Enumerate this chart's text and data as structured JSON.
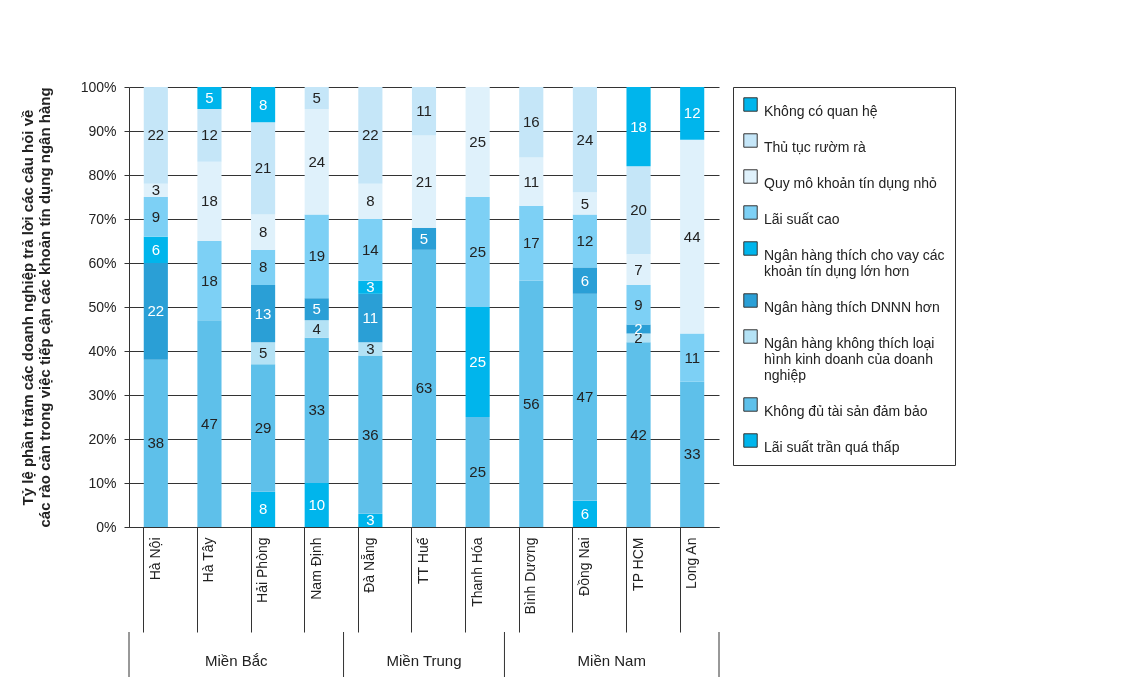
{
  "chart_data": {
    "type": "bar",
    "stacked": true,
    "ylabel": "Tỷ lệ phần trăm các doanh nghiệp trả lời các câu hỏi về các rào cản trong việc tiếp cận các khoản tín dụng ngân hàng",
    "categories": [
      "Hà Nội",
      "Hà Tây",
      "Hải Phòng",
      "Nam Định",
      "Đà Nẵng",
      "TT Huế",
      "Thanh Hóa",
      "Bình Dương",
      "Đồng Nai",
      "TP HCM",
      "Long An"
    ],
    "series": [
      {
        "name": "Lãi suất trần quá thấp",
        "color": "#00b5ec",
        "values": [
          null,
          null,
          8,
          10,
          3,
          null,
          null,
          null,
          6,
          null,
          null
        ]
      },
      {
        "name": "Không đủ tài sản đảm bảo",
        "color": "#5ec0ea",
        "values": [
          38,
          47,
          29,
          33,
          36,
          63,
          25,
          56,
          47,
          42,
          33
        ]
      },
      {
        "name": "Ngân hàng không thích loại hình kinh doanh của doanh nghiệp",
        "color": "#b4e2f5",
        "values": [
          null,
          null,
          5,
          4,
          3,
          null,
          null,
          null,
          null,
          2,
          null
        ]
      },
      {
        "name": "Ngân hàng thích DNNN hơn",
        "color": "#2a9fd6",
        "values": [
          22,
          null,
          13,
          5,
          11,
          5,
          null,
          null,
          6,
          2,
          null
        ]
      },
      {
        "name": "Ngân hàng thích cho vay các khoản tín dụng lớn hơn",
        "color": "#00b5ec",
        "values": [
          6,
          null,
          null,
          null,
          3,
          null,
          25,
          null,
          null,
          null,
          null
        ]
      },
      {
        "name": "Lãi suất cao",
        "color": "#7dd0f5",
        "values": [
          9,
          18,
          8,
          19,
          14,
          null,
          25,
          17,
          12,
          9,
          11
        ]
      },
      {
        "name": "Quy mô khoản tín dụng nhỏ",
        "color": "#dff1fb",
        "values": [
          3,
          18,
          8,
          24,
          8,
          21,
          25,
          11,
          5,
          7,
          44
        ]
      },
      {
        "name": "Thủ tục rườm rà",
        "color": "#c5e6f8",
        "values": [
          22,
          12,
          21,
          5,
          22,
          11,
          null,
          16,
          24,
          20,
          null
        ]
      },
      {
        "name": "Không có quan hệ",
        "color": "#00b5ec",
        "values": [
          null,
          5,
          8,
          null,
          null,
          null,
          null,
          null,
          null,
          18,
          12
        ]
      }
    ],
    "ylim": [
      0,
      100
    ],
    "yticks": [
      {
        "value": 0,
        "label": "0%"
      },
      {
        "value": 10,
        "label": "10%"
      },
      {
        "value": 20,
        "label": "20%"
      },
      {
        "value": 30,
        "label": "30%"
      },
      {
        "value": 40,
        "label": "40%"
      },
      {
        "value": 50,
        "label": "50%"
      },
      {
        "value": 60,
        "label": "60%"
      },
      {
        "value": 70,
        "label": "70%"
      },
      {
        "value": 80,
        "label": "80%"
      },
      {
        "value": 90,
        "label": "90%"
      },
      {
        "value": 100,
        "label": "100%"
      }
    ],
    "grid": "y",
    "legend": "right",
    "data_labels": true,
    "annotations": [
      "Miền Bắc",
      "Miền Trung",
      "Miền Nam"
    ]
  }
}
